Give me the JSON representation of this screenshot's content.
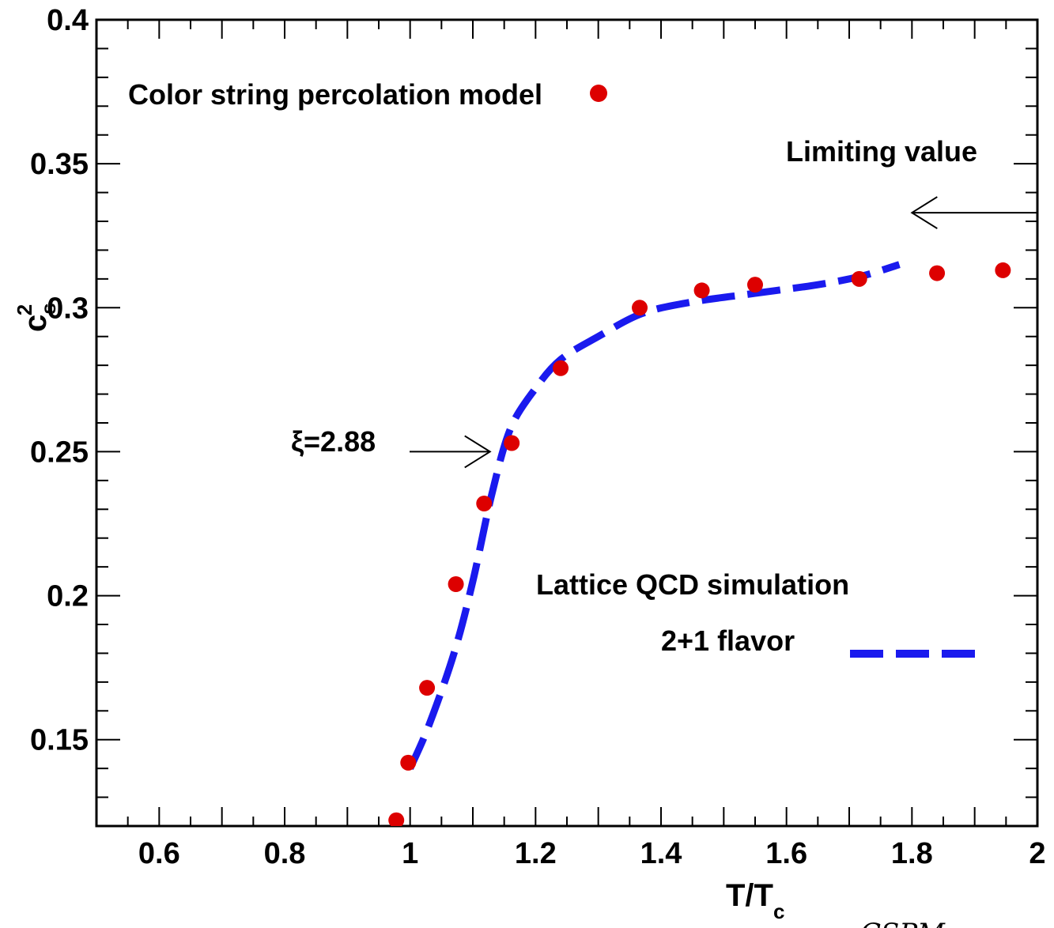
{
  "chart_data": {
    "type": "scatter",
    "title": "",
    "xlabel": "T/T",
    "xlabel_sub": "c",
    "ylabel": "c",
    "ylabel_sup": "2",
    "ylabel_sub": "s",
    "xlim": [
      0.5,
      2.0
    ],
    "ylim": [
      0.12,
      0.4
    ],
    "x_ticks": [
      0.6,
      0.8,
      1.0,
      1.2,
      1.4,
      1.6,
      1.8,
      2.0
    ],
    "x_tick_labels": [
      "0.6",
      "0.8",
      "1",
      "1.2",
      "1.4",
      "1.6",
      "1.8",
      "2"
    ],
    "y_ticks": [
      0.15,
      0.2,
      0.25,
      0.3,
      0.35,
      0.4
    ],
    "y_tick_labels": [
      "0.15",
      "0.2",
      "0.25",
      "0.3",
      "0.35",
      "0.4"
    ],
    "grid": false,
    "series": [
      {
        "name": "Color string percolation model",
        "kind": "scatter",
        "color": "#dd0000",
        "x": [
          0.978,
          0.997,
          1.027,
          1.073,
          1.118,
          1.162,
          1.24,
          1.366,
          1.465,
          1.55,
          1.716,
          1.84,
          1.945
        ],
        "y": [
          0.122,
          0.142,
          0.168,
          0.204,
          0.232,
          0.253,
          0.279,
          0.3,
          0.306,
          0.308,
          0.31,
          0.312,
          0.313
        ]
      },
      {
        "name": "Lattice QCD simulation 2+1 flavor",
        "kind": "line",
        "style": "dashed",
        "color": "#1a1aee",
        "x": [
          1.0,
          1.03,
          1.07,
          1.1,
          1.13,
          1.16,
          1.2,
          1.24,
          1.3,
          1.37,
          1.45,
          1.55,
          1.65,
          1.72,
          1.78
        ],
        "y": [
          0.14,
          0.155,
          0.18,
          0.205,
          0.235,
          0.258,
          0.272,
          0.282,
          0.29,
          0.298,
          0.302,
          0.305,
          0.308,
          0.311,
          0.315
        ]
      }
    ],
    "legend": {
      "scatter_label": "Color string percolation model",
      "line_label_1": "Lattice QCD simulation",
      "line_label_2": "2+1 flavor"
    },
    "annotations": {
      "limiting_value": "Limiting value",
      "xi_label": "ξ=2.88",
      "xi_point": [
        1.14,
        0.25
      ],
      "limit_arrow_tip": [
        1.8,
        0.333
      ]
    },
    "footer": "CSPM"
  }
}
